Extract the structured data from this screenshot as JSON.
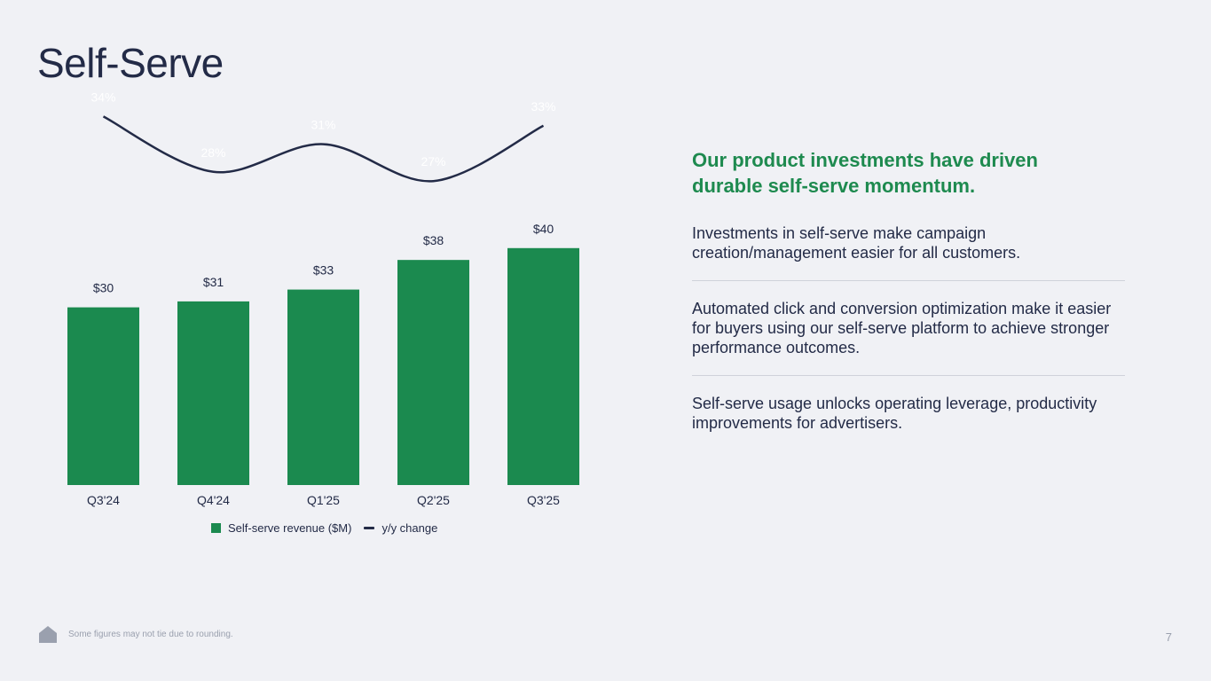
{
  "title": "Self-Serve",
  "chart_data": {
    "type": "bar",
    "categories": [
      "Q3'24",
      "Q4'24",
      "Q1'25",
      "Q2'25",
      "Q3'25"
    ],
    "series": [
      {
        "name": "Self-serve revenue ($M)",
        "type": "bar",
        "values": [
          30,
          31,
          33,
          38,
          40
        ],
        "value_labels": [
          "$30",
          "$31",
          "$33",
          "$38",
          "$40"
        ],
        "color": "#1b8a4f"
      },
      {
        "name": "y/y change",
        "type": "line",
        "values": [
          34,
          28,
          31,
          27,
          33
        ],
        "value_labels": [
          "34%",
          "28%",
          "31%",
          "27%",
          "33%"
        ],
        "color": "#232b47"
      }
    ],
    "grid": false,
    "legend_placement": "bottom-center"
  },
  "panel": {
    "headline": "Our product investments have driven durable self-serve momentum.",
    "points": [
      "Investments in self-serve make campaign creation/management easier for all customers.",
      "Automated click and conversion optimization make it easier for buyers using our self-serve platform to achieve stronger performance outcomes.",
      "Self-serve usage unlocks operating leverage, productivity improvements for advertisers."
    ]
  },
  "footer": {
    "note": "Some figures may not tie due to rounding.",
    "page": "7",
    "logo_icon": "house-logo-icon"
  }
}
